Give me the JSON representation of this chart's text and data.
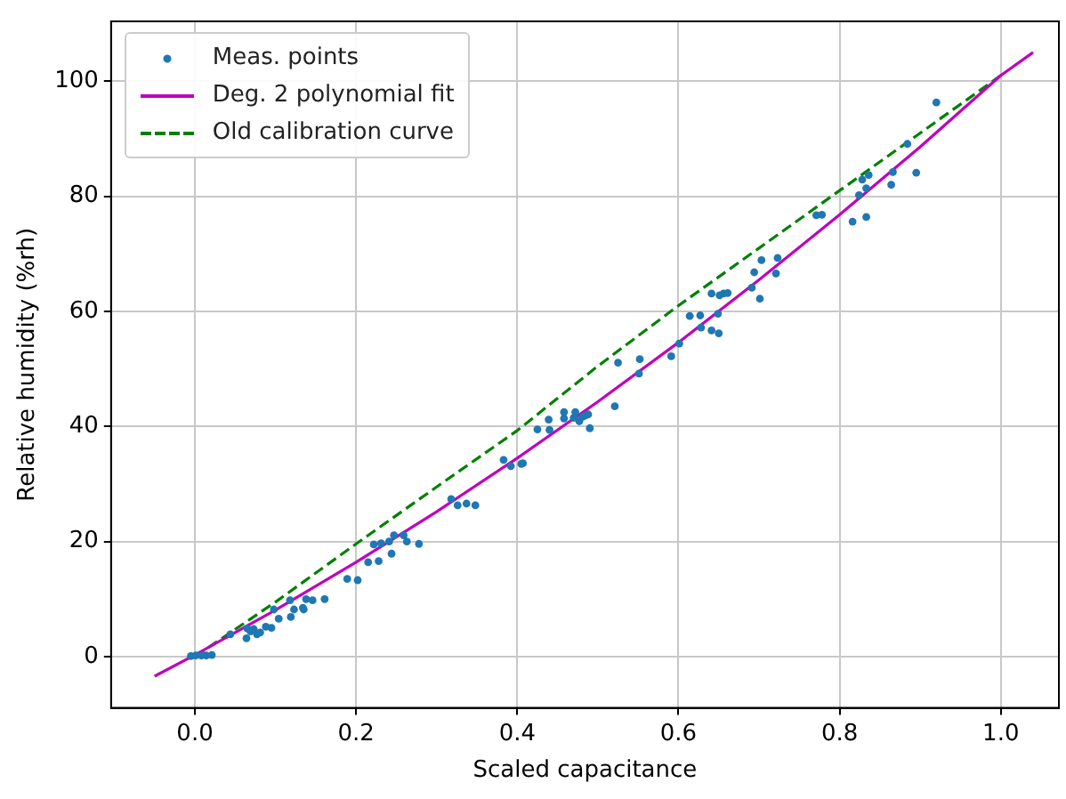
{
  "chart_data": {
    "type": "scatter",
    "xlabel": "Scaled capacitance",
    "ylabel": "Relative humidity (%rh)",
    "xlim": [
      -0.104,
      1.072
    ],
    "ylim": [
      -8.9,
      110.4
    ],
    "xticks": [
      {
        "value": 0,
        "label": "0.0"
      },
      {
        "value": 0.2,
        "label": "0.2"
      },
      {
        "value": 0.4,
        "label": "0.4"
      },
      {
        "value": 0.6,
        "label": "0.6"
      },
      {
        "value": 0.8,
        "label": "0.8"
      },
      {
        "value": 1,
        "label": "1.0"
      }
    ],
    "yticks": [
      0,
      20,
      40,
      60,
      80,
      100
    ],
    "grid": true,
    "legend": "top left",
    "series": [
      {
        "name": "Meas. points",
        "type": "scatter",
        "marker": "circle",
        "color": "#1f77b4",
        "x": [
          -0.005,
          0.001,
          0.008,
          0.014,
          0.021,
          0.044,
          0.064,
          0.065,
          0.069,
          0.073,
          0.077,
          0.081,
          0.088,
          0.095,
          0.104,
          0.119,
          0.098,
          0.118,
          0.123,
          0.134,
          0.135,
          0.138,
          0.146,
          0.161,
          0.189,
          0.202,
          0.215,
          0.228,
          0.222,
          0.231,
          0.241,
          0.247,
          0.259,
          0.263,
          0.278,
          0.244,
          0.318,
          0.326,
          0.337,
          0.348,
          0.383,
          0.392,
          0.405,
          0.407,
          0.425,
          0.44,
          0.439,
          0.458,
          0.458,
          0.472,
          0.47,
          0.477,
          0.481,
          0.484,
          0.488,
          0.49,
          0.521,
          0.525,
          0.552,
          0.551,
          0.591,
          0.601,
          0.614,
          0.627,
          0.628,
          0.641,
          0.65,
          0.649,
          0.641,
          0.651,
          0.656,
          0.661,
          0.691,
          0.701,
          0.703,
          0.694,
          0.723,
          0.721,
          0.771,
          0.778,
          0.816,
          0.833,
          0.824,
          0.833,
          0.828,
          0.836,
          0.866,
          0.864,
          0.884,
          0.895,
          0.92
        ],
        "values": [
          0.1,
          0.2,
          0.2,
          0.2,
          0.3,
          3.9,
          3.2,
          4.9,
          4.4,
          4.8,
          3.9,
          4.2,
          5.2,
          5.0,
          6.6,
          6.9,
          8.2,
          9.8,
          8.2,
          8.5,
          8.2,
          10.0,
          9.8,
          10.0,
          13.5,
          13.3,
          16.4,
          16.6,
          19.5,
          19.7,
          20.0,
          21.1,
          21.1,
          20.0,
          19.6,
          17.9,
          27.4,
          26.3,
          26.6,
          26.3,
          34.2,
          33.1,
          33.5,
          33.6,
          39.5,
          39.4,
          41.2,
          41.4,
          42.5,
          42.5,
          41.5,
          40.9,
          41.7,
          41.9,
          42.1,
          39.7,
          43.5,
          51.1,
          51.7,
          49.2,
          52.2,
          54.4,
          59.2,
          59.3,
          57.2,
          56.7,
          56.2,
          59.6,
          63.1,
          62.8,
          63.1,
          63.2,
          64.1,
          62.2,
          68.9,
          66.8,
          69.3,
          66.6,
          76.7,
          76.8,
          75.6,
          76.4,
          80.2,
          81.4,
          82.9,
          83.7,
          84.2,
          82.0,
          89.1,
          84.1,
          96.3
        ]
      },
      {
        "name": "Deg. 2 polynomial fit",
        "type": "line",
        "line_style": "solid",
        "color": "#bf00bf",
        "x": [
          -0.05,
          0,
          0.1,
          0.2,
          0.3,
          0.4,
          0.5,
          0.6,
          0.7,
          0.8,
          0.9,
          1.0,
          1.04
        ],
        "values": [
          -3.4,
          0.3,
          8.1,
          16.4,
          25.2,
          34.5,
          44.3,
          54.6,
          65.5,
          76.8,
          88.6,
          101.0,
          105.0
        ]
      },
      {
        "name": "Old calibration curve",
        "type": "line",
        "line_style": "dashed",
        "color": "#008000",
        "x": [
          0,
          0.1,
          0.2,
          0.3,
          0.4,
          0.5,
          0.6,
          0.7,
          0.8,
          0.9,
          1.0
        ],
        "values": [
          0,
          9.5,
          19.6,
          29.5,
          39.3,
          50.5,
          61,
          71,
          81,
          91,
          101
        ]
      }
    ]
  }
}
